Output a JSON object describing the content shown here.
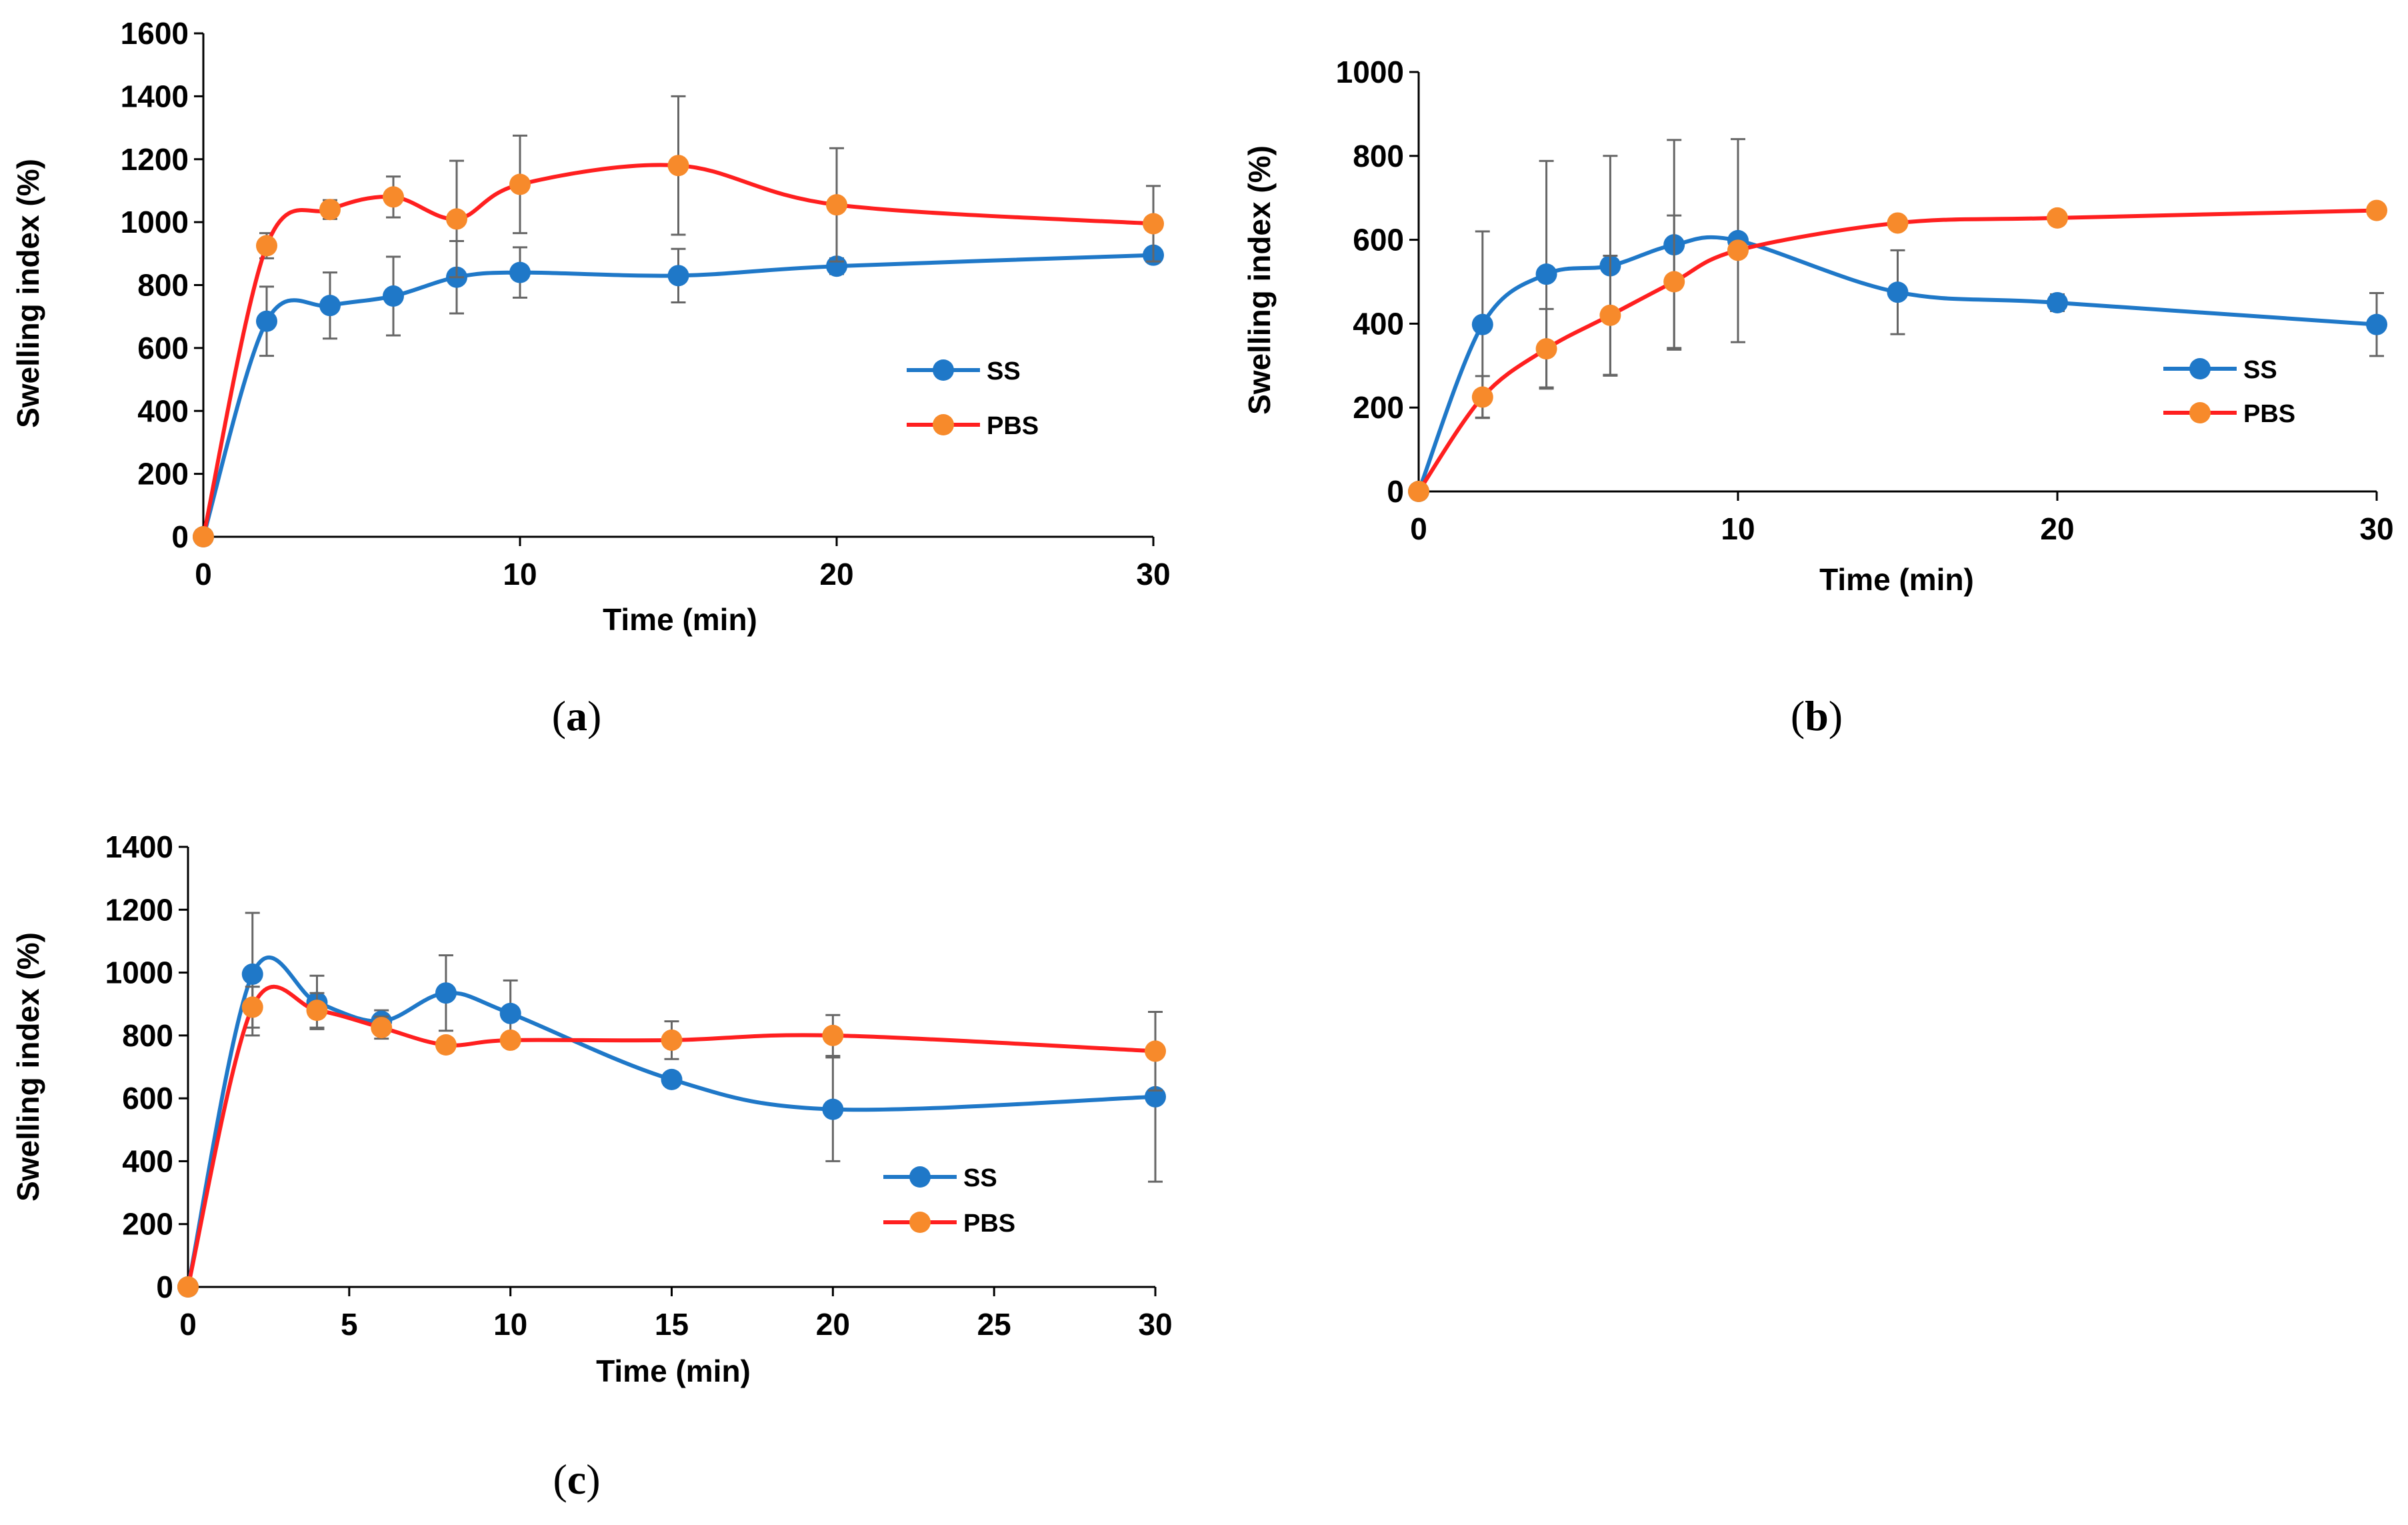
{
  "chart_data": [
    {
      "type": "line",
      "panel_label": "a",
      "xlabel": "Time (min)",
      "ylabel": "Swelling index (%)",
      "xlim": [
        0,
        30
      ],
      "ylim": [
        0,
        1600
      ],
      "xticks": [
        0,
        10,
        20,
        30
      ],
      "yticks": [
        0,
        200,
        400,
        600,
        800,
        1000,
        1200,
        1400,
        1600
      ],
      "legend_position": "center-right",
      "series": [
        {
          "name": "SS",
          "color": "#1f78c8",
          "marker_color": "#1f78c8",
          "x": [
            0,
            2,
            4,
            6,
            8,
            10,
            15,
            20,
            30
          ],
          "values": [
            0,
            685,
            735,
            765,
            825,
            840,
            830,
            860,
            895
          ],
          "errors": [
            0,
            110,
            105,
            125,
            115,
            80,
            85,
            25,
            0
          ]
        },
        {
          "name": "PBS",
          "color": "#ff1f1f",
          "marker_color": "#f78a2b",
          "x": [
            0,
            2,
            4,
            6,
            8,
            10,
            15,
            20,
            30
          ],
          "values": [
            0,
            925,
            1040,
            1080,
            1010,
            1120,
            1180,
            1055,
            995
          ],
          "errors": [
            0,
            40,
            30,
            65,
            185,
            155,
            220,
            180,
            120
          ]
        }
      ]
    },
    {
      "type": "line",
      "panel_label": "b",
      "xlabel": "Time (min)",
      "ylabel": "Swelling index (%)",
      "xlim": [
        0,
        30
      ],
      "ylim": [
        0,
        1000
      ],
      "xticks": [
        0,
        10,
        20,
        30
      ],
      "yticks": [
        0,
        200,
        400,
        600,
        800,
        1000
      ],
      "legend_position": "bottom-right",
      "series": [
        {
          "name": "SS",
          "color": "#1f78c8",
          "marker_color": "#1f78c8",
          "x": [
            0,
            2,
            4,
            6,
            8,
            10,
            15,
            20,
            30
          ],
          "values": [
            0,
            398,
            518,
            538,
            588,
            598,
            475,
            450,
            398
          ],
          "errors": [
            0,
            222,
            270,
            262,
            250,
            242,
            100,
            20,
            75
          ]
        },
        {
          "name": "PBS",
          "color": "#ff1f1f",
          "marker_color": "#f78a2b",
          "x": [
            0,
            2,
            4,
            6,
            8,
            10,
            15,
            20,
            30
          ],
          "values": [
            0,
            225,
            340,
            420,
            500,
            575,
            640,
            652,
            670
          ],
          "errors": [
            0,
            50,
            95,
            142,
            158,
            0,
            0,
            0,
            0
          ]
        }
      ]
    },
    {
      "type": "line",
      "panel_label": "c",
      "xlabel": "Time (min)",
      "ylabel": "Swelling index (%)",
      "xlim": [
        0,
        30
      ],
      "ylim": [
        0,
        1400
      ],
      "xticks": [
        0,
        5,
        10,
        15,
        20,
        25,
        30
      ],
      "yticks": [
        0,
        200,
        400,
        600,
        800,
        1000,
        1200,
        1400
      ],
      "legend_position": "bottom-right",
      "series": [
        {
          "name": "SS",
          "color": "#1f78c8",
          "marker_color": "#1f78c8",
          "x": [
            0,
            2,
            4,
            6,
            8,
            10,
            15,
            20,
            30
          ],
          "values": [
            0,
            995,
            905,
            845,
            935,
            870,
            660,
            565,
            605
          ],
          "errors": [
            0,
            195,
            85,
            35,
            120,
            105,
            0,
            165,
            270
          ]
        },
        {
          "name": "PBS",
          "color": "#ff1f1f",
          "marker_color": "#f78a2b",
          "x": [
            0,
            2,
            4,
            6,
            8,
            10,
            15,
            20,
            30
          ],
          "values": [
            0,
            890,
            880,
            825,
            770,
            785,
            785,
            800,
            750
          ],
          "errors": [
            0,
            65,
            55,
            35,
            0,
            0,
            60,
            65,
            125
          ]
        }
      ]
    }
  ]
}
